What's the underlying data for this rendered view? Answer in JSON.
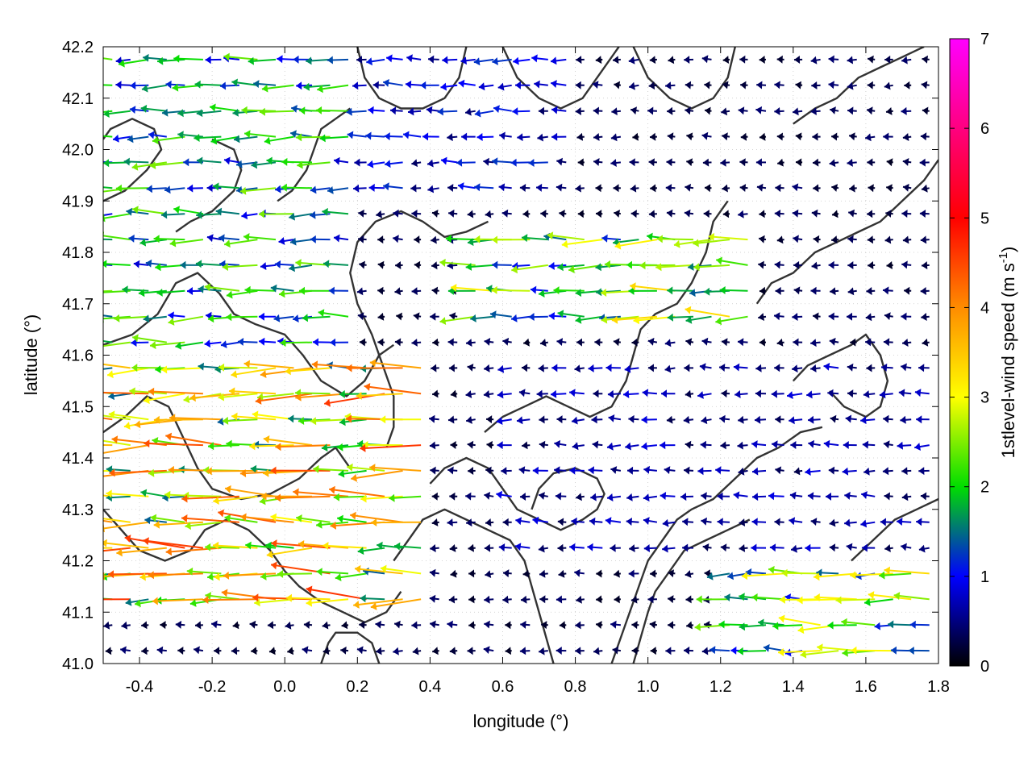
{
  "chart_data": {
    "type": "vector-field",
    "xlabel": "longitude (°)",
    "ylabel": "latitude (°)",
    "colorbar_label": "1stlevel-wind speed (m s-1)",
    "colorbar_label_parts": {
      "base": "1stlevel-wind speed (m s",
      "exp": "-1",
      "tail": ")"
    },
    "xlim": [
      -0.5,
      1.8
    ],
    "ylim": [
      41.0,
      42.2
    ],
    "clim": [
      0,
      7
    ],
    "grid": true,
    "xticks": [
      "-0.4",
      "-0.2",
      "0.0",
      "0.2",
      "0.4",
      "0.6",
      "0.8",
      "1.0",
      "1.2",
      "1.4",
      "1.6",
      "1.8"
    ],
    "xtick_values": [
      -0.4,
      -0.2,
      0.0,
      0.2,
      0.4,
      0.6,
      0.8,
      1.0,
      1.2,
      1.4,
      1.6,
      1.8
    ],
    "yticks": [
      "41.0",
      "41.1",
      "41.2",
      "41.3",
      "41.4",
      "41.5",
      "41.6",
      "41.7",
      "41.8",
      "41.9",
      "42.0",
      "42.1",
      "42.2"
    ],
    "ytick_values": [
      41.0,
      41.1,
      41.2,
      41.3,
      41.4,
      41.5,
      41.6,
      41.7,
      41.8,
      41.9,
      42.0,
      42.1,
      42.2
    ],
    "colorbar_ticks": [
      "0",
      "1",
      "2",
      "3",
      "4",
      "5",
      "6",
      "7"
    ],
    "colorbar_tick_values": [
      0,
      1,
      2,
      3,
      4,
      5,
      6,
      7
    ],
    "colormap": [
      "#000000",
      "#0000ff",
      "#00dd00",
      "#ffff00",
      "#ff8c00",
      "#ff0000",
      "#ff00ff"
    ],
    "contour_color": "#333333",
    "vector_grid": {
      "lon_step": 0.05,
      "lat_step": 0.05
    },
    "speed_regions": [
      {
        "lon": [
          -0.5,
          0.4
        ],
        "lat": [
          41.1,
          41.6
        ],
        "speed": 3.6
      },
      {
        "lon": [
          -0.5,
          0.2
        ],
        "lat": [
          41.6,
          42.2
        ],
        "speed": 2.0
      },
      {
        "lon": [
          0.5,
          1.3
        ],
        "lat": [
          41.65,
          41.85
        ],
        "speed": 2.6
      },
      {
        "lon": [
          1.2,
          1.8
        ],
        "lat": [
          41.0,
          41.2
        ],
        "speed": 2.6
      },
      {
        "lon": [
          0.2,
          0.8
        ],
        "lat": [
          41.9,
          42.2
        ],
        "speed": 1.0
      },
      {
        "lon": [
          0.6,
          1.8
        ],
        "lat": [
          41.2,
          41.6
        ],
        "speed": 0.7
      }
    ],
    "contours": [
      [
        [
          -0.5,
          41.62
        ],
        [
          -0.42,
          41.64
        ],
        [
          -0.35,
          41.68
        ],
        [
          -0.3,
          41.74
        ],
        [
          -0.24,
          41.76
        ],
        [
          -0.18,
          41.72
        ],
        [
          -0.14,
          41.68
        ],
        [
          -0.08,
          41.66
        ],
        [
          0.0,
          41.64
        ],
        [
          0.05,
          41.6
        ],
        [
          0.1,
          41.55
        ],
        [
          0.17,
          41.52
        ],
        [
          0.22,
          41.55
        ],
        [
          0.26,
          41.6
        ],
        [
          0.3,
          41.62
        ]
      ],
      [
        [
          -0.5,
          41.45
        ],
        [
          -0.44,
          41.48
        ],
        [
          -0.38,
          41.52
        ],
        [
          -0.32,
          41.5
        ],
        [
          -0.28,
          41.44
        ],
        [
          -0.24,
          41.38
        ],
        [
          -0.2,
          41.34
        ],
        [
          -0.12,
          41.32
        ],
        [
          -0.04,
          41.33
        ],
        [
          0.04,
          41.36
        ],
        [
          0.1,
          41.4
        ],
        [
          0.14,
          41.42
        ],
        [
          0.18,
          41.38
        ]
      ],
      [
        [
          -0.5,
          41.3
        ],
        [
          -0.45,
          41.26
        ],
        [
          -0.4,
          41.22
        ],
        [
          -0.33,
          41.2
        ],
        [
          -0.26,
          41.22
        ],
        [
          -0.22,
          41.26
        ],
        [
          -0.16,
          41.28
        ],
        [
          -0.1,
          41.26
        ],
        [
          -0.04,
          41.22
        ],
        [
          0.0,
          41.18
        ],
        [
          0.04,
          41.15
        ],
        [
          0.1,
          41.12
        ],
        [
          0.16,
          41.1
        ],
        [
          0.22,
          41.08
        ],
        [
          0.28,
          41.1
        ],
        [
          0.32,
          41.14
        ]
      ],
      [
        [
          0.28,
          41.42
        ],
        [
          0.3,
          41.46
        ],
        [
          0.3,
          41.52
        ],
        [
          0.27,
          41.58
        ],
        [
          0.24,
          41.64
        ],
        [
          0.2,
          41.7
        ],
        [
          0.18,
          41.76
        ],
        [
          0.2,
          41.82
        ],
        [
          0.25,
          41.86
        ],
        [
          0.32,
          41.88
        ],
        [
          0.38,
          41.86
        ],
        [
          0.44,
          41.83
        ],
        [
          0.5,
          41.84
        ],
        [
          0.56,
          41.86
        ]
      ],
      [
        [
          0.4,
          41.35
        ],
        [
          0.44,
          41.38
        ],
        [
          0.5,
          41.4
        ],
        [
          0.56,
          41.38
        ],
        [
          0.6,
          41.34
        ],
        [
          0.64,
          41.3
        ],
        [
          0.7,
          41.28
        ],
        [
          0.76,
          41.26
        ],
        [
          0.82,
          41.28
        ],
        [
          0.86,
          41.3
        ],
        [
          0.88,
          41.33
        ],
        [
          0.86,
          41.36
        ],
        [
          0.8,
          41.38
        ],
        [
          0.74,
          41.37
        ],
        [
          0.7,
          41.34
        ],
        [
          0.68,
          41.3
        ]
      ],
      [
        [
          0.3,
          41.2
        ],
        [
          0.34,
          41.24
        ],
        [
          0.38,
          41.28
        ],
        [
          0.44,
          41.3
        ],
        [
          0.5,
          41.28
        ],
        [
          0.56,
          41.26
        ],
        [
          0.62,
          41.24
        ],
        [
          0.66,
          41.2
        ],
        [
          0.68,
          41.15
        ],
        [
          0.7,
          41.1
        ],
        [
          0.72,
          41.05
        ],
        [
          0.74,
          41.0
        ]
      ],
      [
        [
          0.55,
          41.45
        ],
        [
          0.6,
          41.48
        ],
        [
          0.66,
          41.5
        ],
        [
          0.72,
          41.52
        ],
        [
          0.78,
          41.5
        ],
        [
          0.84,
          41.48
        ],
        [
          0.9,
          41.5
        ],
        [
          0.94,
          41.55
        ],
        [
          0.96,
          41.6
        ],
        [
          0.98,
          41.65
        ],
        [
          1.02,
          41.68
        ],
        [
          1.08,
          41.7
        ],
        [
          1.12,
          41.74
        ],
        [
          1.16,
          41.8
        ],
        [
          1.18,
          41.86
        ],
        [
          1.22,
          41.9
        ]
      ],
      [
        [
          0.9,
          41.0
        ],
        [
          0.92,
          41.04
        ],
        [
          0.94,
          41.08
        ],
        [
          0.96,
          41.12
        ],
        [
          0.98,
          41.16
        ],
        [
          1.0,
          41.2
        ],
        [
          1.04,
          41.24
        ],
        [
          1.08,
          41.28
        ],
        [
          1.12,
          41.3
        ],
        [
          1.18,
          41.32
        ],
        [
          1.24,
          41.36
        ],
        [
          1.3,
          41.4
        ],
        [
          1.36,
          41.42
        ],
        [
          1.42,
          41.45
        ],
        [
          1.48,
          41.46
        ]
      ],
      [
        [
          0.96,
          41.0
        ],
        [
          0.98,
          41.05
        ],
        [
          1.0,
          41.1
        ],
        [
          1.02,
          41.14
        ],
        [
          1.06,
          41.18
        ],
        [
          1.1,
          41.22
        ],
        [
          1.16,
          41.24
        ],
        [
          1.22,
          41.26
        ],
        [
          1.28,
          41.28
        ]
      ],
      [
        [
          1.4,
          41.55
        ],
        [
          1.44,
          41.58
        ],
        [
          1.5,
          41.6
        ],
        [
          1.56,
          41.62
        ],
        [
          1.6,
          41.64
        ],
        [
          1.64,
          41.6
        ],
        [
          1.66,
          41.55
        ],
        [
          1.64,
          41.5
        ],
        [
          1.6,
          41.48
        ],
        [
          1.54,
          41.5
        ],
        [
          1.5,
          41.53
        ]
      ],
      [
        [
          1.3,
          41.7
        ],
        [
          1.34,
          41.74
        ],
        [
          1.4,
          41.76
        ],
        [
          1.46,
          41.8
        ],
        [
          1.52,
          41.82
        ],
        [
          1.58,
          41.84
        ],
        [
          1.64,
          41.86
        ],
        [
          1.7,
          41.9
        ],
        [
          1.76,
          41.94
        ],
        [
          1.8,
          41.98
        ]
      ],
      [
        [
          0.2,
          42.2
        ],
        [
          0.22,
          42.14
        ],
        [
          0.26,
          42.1
        ],
        [
          0.32,
          42.08
        ],
        [
          0.38,
          42.08
        ],
        [
          0.44,
          42.1
        ],
        [
          0.48,
          42.14
        ],
        [
          0.5,
          42.2
        ]
      ],
      [
        [
          0.6,
          42.2
        ],
        [
          0.64,
          42.14
        ],
        [
          0.7,
          42.1
        ],
        [
          0.76,
          42.08
        ],
        [
          0.82,
          42.1
        ],
        [
          0.86,
          42.14
        ],
        [
          0.9,
          42.18
        ],
        [
          0.92,
          42.2
        ]
      ],
      [
        [
          0.96,
          42.2
        ],
        [
          1.0,
          42.14
        ],
        [
          1.06,
          42.1
        ],
        [
          1.12,
          42.08
        ],
        [
          1.18,
          42.1
        ],
        [
          1.22,
          42.14
        ],
        [
          1.24,
          42.2
        ]
      ],
      [
        [
          -0.5,
          41.9
        ],
        [
          -0.44,
          41.92
        ],
        [
          -0.38,
          41.96
        ],
        [
          -0.34,
          42.0
        ],
        [
          -0.36,
          42.04
        ],
        [
          -0.42,
          42.06
        ],
        [
          -0.48,
          42.04
        ],
        [
          -0.5,
          42.02
        ]
      ],
      [
        [
          -0.3,
          41.84
        ],
        [
          -0.26,
          41.86
        ],
        [
          -0.2,
          41.88
        ],
        [
          -0.14,
          41.92
        ],
        [
          -0.12,
          41.96
        ],
        [
          -0.14,
          42.0
        ],
        [
          -0.2,
          42.02
        ]
      ],
      [
        [
          -0.02,
          41.9
        ],
        [
          0.02,
          41.92
        ],
        [
          0.06,
          41.96
        ],
        [
          0.08,
          42.0
        ],
        [
          0.1,
          42.04
        ],
        [
          0.14,
          42.06
        ],
        [
          0.18,
          42.08
        ]
      ],
      [
        [
          1.4,
          42.05
        ],
        [
          1.46,
          42.08
        ],
        [
          1.52,
          42.1
        ],
        [
          1.58,
          42.14
        ],
        [
          1.64,
          42.16
        ],
        [
          1.7,
          42.18
        ],
        [
          1.76,
          42.2
        ]
      ],
      [
        [
          1.56,
          41.2
        ],
        [
          1.62,
          41.24
        ],
        [
          1.68,
          41.28
        ],
        [
          1.74,
          41.3
        ],
        [
          1.8,
          41.32
        ]
      ],
      [
        [
          0.1,
          41.0
        ],
        [
          0.12,
          41.04
        ],
        [
          0.14,
          41.06
        ],
        [
          0.2,
          41.06
        ],
        [
          0.24,
          41.04
        ],
        [
          0.26,
          41.0
        ]
      ]
    ]
  }
}
